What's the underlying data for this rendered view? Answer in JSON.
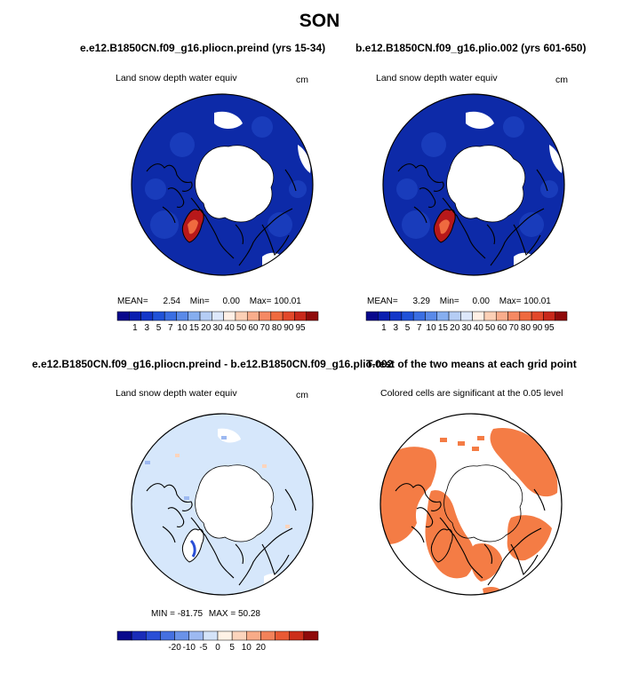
{
  "figure": {
    "title": "SON"
  },
  "panels": [
    {
      "id": "ctrl",
      "title": "e.e12.B1850CN.f09_g16.pliocn.preind (yrs 15-34)",
      "variable": "Land snow depth water equiv",
      "units": "cm",
      "stats": {
        "mean_label": "MEAN=",
        "mean": "2.54",
        "min_label": "Min=",
        "min": "0.00",
        "max_label": "Max=",
        "max": "100.01"
      },
      "colorbar": {
        "ticks": [
          "1",
          "3",
          "5",
          "7",
          "10",
          "15",
          "20",
          "30",
          "40",
          "50",
          "60",
          "70",
          "80",
          "90",
          "95"
        ],
        "colors": [
          "#08088c",
          "#0a1fb0",
          "#1336c8",
          "#2052d8",
          "#3a6ee2",
          "#5a8ae8",
          "#86aeef",
          "#b5cdf5",
          "#dde8fb",
          "#fff0e6",
          "#fcd0b6",
          "#f9ad8c",
          "#f58963",
          "#ef6a3f",
          "#e2482a",
          "#c8281a",
          "#8f0a0a"
        ]
      },
      "legend_colors": {
        "land": "#0d2aa8",
        "ice": "#ffffff",
        "hot": "#b7181a"
      }
    },
    {
      "id": "plio",
      "title": "b.e12.B1850CN.f09_g16.plio.002 (yrs 601-650)",
      "variable": "Land snow depth water equiv",
      "units": "cm",
      "stats": {
        "mean_label": "MEAN=",
        "mean": "3.29",
        "min_label": "Min=",
        "min": "0.00",
        "max_label": "Max=",
        "max": "100.01"
      },
      "colorbar": {
        "ticks": [
          "1",
          "3",
          "5",
          "7",
          "10",
          "15",
          "20",
          "30",
          "40",
          "50",
          "60",
          "70",
          "80",
          "90",
          "95"
        ],
        "colors": [
          "#08088c",
          "#0a1fb0",
          "#1336c8",
          "#2052d8",
          "#3a6ee2",
          "#5a8ae8",
          "#86aeef",
          "#b5cdf5",
          "#dde8fb",
          "#fff0e6",
          "#fcd0b6",
          "#f9ad8c",
          "#f58963",
          "#ef6a3f",
          "#e2482a",
          "#c8281a",
          "#8f0a0a"
        ]
      }
    },
    {
      "id": "diff",
      "title": "e.e12.B1850CN.f09_g16.pliocn.preind - b.e12.B1850CN.f09_g16.plio.002",
      "variable": "Land snow depth water equiv",
      "units": "cm",
      "stats": {
        "min_label": "MIN =",
        "min": "-81.75",
        "max_label": "MAX =",
        "max": "50.28"
      },
      "colorbar": {
        "ticks": [
          "-20",
          "-10",
          "-5",
          "0",
          "5",
          "10",
          "20"
        ],
        "colors": [
          "#08088c",
          "#1a2cb8",
          "#2a4fd6",
          "#4570e0",
          "#6a92e8",
          "#9db9f1",
          "#d4e3f9",
          "#fff2e6",
          "#fcd4bc",
          "#f8ab88",
          "#f2825a",
          "#e85a34",
          "#cc2e1a",
          "#8f0a0a"
        ]
      },
      "fill_color": "#d6e7fb"
    },
    {
      "id": "ttest",
      "title": "T-test of the two means at each grid point",
      "variable": "Colored cells are significant at the 0.05 level",
      "fill_color": "#f47c45"
    }
  ]
}
